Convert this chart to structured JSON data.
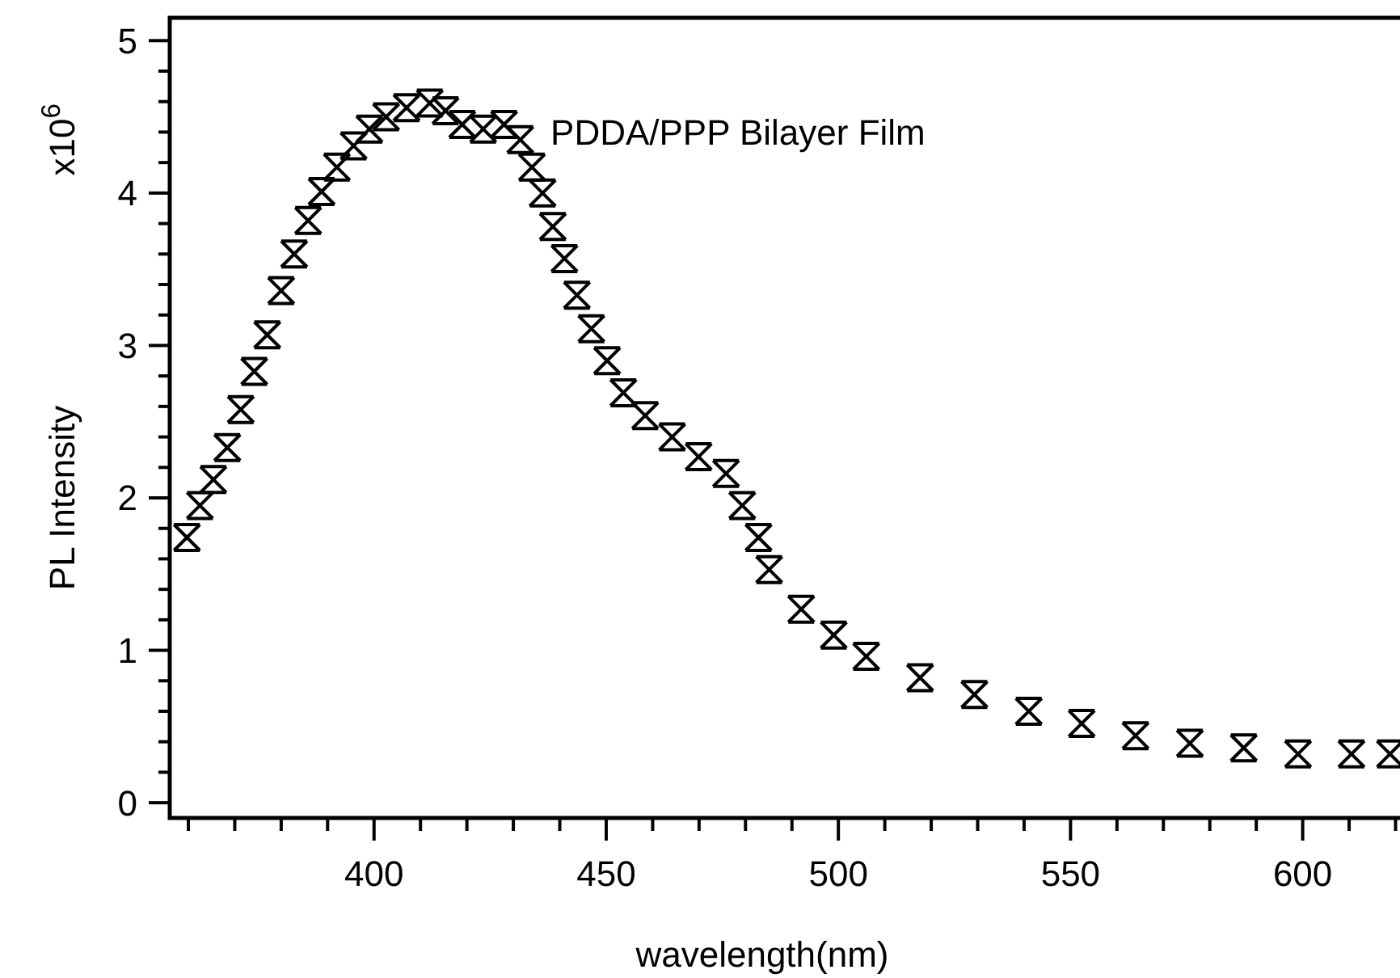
{
  "chart_data": {
    "type": "scatter",
    "xlabel": "wavelength(nm)",
    "ylabel": "PL Intensity",
    "annotations": [
      "x10$^{6}$"
    ],
    "xlim": [
      356,
      622
    ],
    "xticks": [
      {
        "value": 360,
        "label": null
      },
      {
        "value": 370,
        "label": null
      },
      {
        "value": 380,
        "label": null
      },
      {
        "value": 390,
        "label": null
      },
      400,
      {
        "value": 410,
        "label": null
      },
      {
        "value": 420,
        "label": null
      },
      {
        "value": 430,
        "label": null
      },
      {
        "value": 440,
        "label": null
      },
      450,
      {
        "value": 460,
        "label": null
      },
      {
        "value": 470,
        "label": null
      },
      {
        "value": 480,
        "label": null
      },
      {
        "value": 490,
        "label": null
      },
      500,
      {
        "value": 510,
        "label": null
      },
      {
        "value": 520,
        "label": null
      },
      {
        "value": 530,
        "label": null
      },
      {
        "value": 540,
        "label": null
      },
      550,
      {
        "value": 560,
        "label": null
      },
      {
        "value": 570,
        "label": null
      },
      {
        "value": 580,
        "label": null
      },
      {
        "value": 590,
        "label": null
      },
      600,
      {
        "value": 610,
        "label": null
      },
      {
        "value": 620,
        "label": null
      }
    ],
    "ylim": [
      -0.1,
      5.15
    ],
    "yticks": [
      0,
      {
        "value": 0.2,
        "label": null
      },
      {
        "value": 0.4,
        "label": null
      },
      {
        "value": 0.6,
        "label": null
      },
      {
        "value": 0.8,
        "label": null
      },
      1,
      {
        "value": 1.2,
        "label": null
      },
      {
        "value": 1.4,
        "label": null
      },
      {
        "value": 1.6,
        "label": null
      },
      {
        "value": 1.8,
        "label": null
      },
      2,
      {
        "value": 2.2,
        "label": null
      },
      {
        "value": 2.4,
        "label": null
      },
      {
        "value": 2.6,
        "label": null
      },
      {
        "value": 2.8,
        "label": null
      },
      3,
      {
        "value": 3.2,
        "label": null
      },
      {
        "value": 3.4,
        "label": null
      },
      {
        "value": 3.6,
        "label": null
      },
      {
        "value": 3.8,
        "label": null
      },
      4,
      {
        "value": 4.2,
        "label": null
      },
      {
        "value": 4.4,
        "label": null
      },
      {
        "value": 4.6,
        "label": null
      },
      {
        "value": 4.8,
        "label": null
      },
      5
    ],
    "grid": false,
    "marker": "cross",
    "series": [
      {
        "name": "PDDA/PPP Bilayer Film",
        "color": "#000000",
        "x": [
          359.7,
          362.5,
          365.4,
          368.4,
          371.3,
          374.2,
          377,
          380,
          382.8,
          385.8,
          388.7,
          392,
          395.6,
          399,
          402.6,
          407,
          412,
          415.4,
          419,
          423.5,
          428,
          431.5,
          434,
          436.3,
          438.5,
          441,
          443.7,
          446.8,
          450.2,
          453.7,
          458.4,
          464.2,
          469.9,
          475.8,
          479.3,
          482.8,
          485.1,
          492,
          499,
          506,
          517.6,
          529.3,
          541,
          552.4,
          564,
          575.7,
          587.3,
          599,
          610.5,
          618.8
        ],
        "values": [
          1.74,
          1.95,
          2.12,
          2.33,
          2.58,
          2.83,
          3.07,
          3.36,
          3.6,
          3.82,
          4.01,
          4.17,
          4.31,
          4.42,
          4.5,
          4.56,
          4.59,
          4.54,
          4.45,
          4.42,
          4.45,
          4.35,
          4.17,
          4.0,
          3.78,
          3.57,
          3.33,
          3.11,
          2.9,
          2.69,
          2.54,
          2.4,
          2.27,
          2.16,
          1.95,
          1.74,
          1.53,
          1.27,
          1.1,
          0.96,
          0.82,
          0.71,
          0.6,
          0.52,
          0.44,
          0.39,
          0.36,
          0.32,
          0.32,
          0.32
        ]
      }
    ]
  }
}
